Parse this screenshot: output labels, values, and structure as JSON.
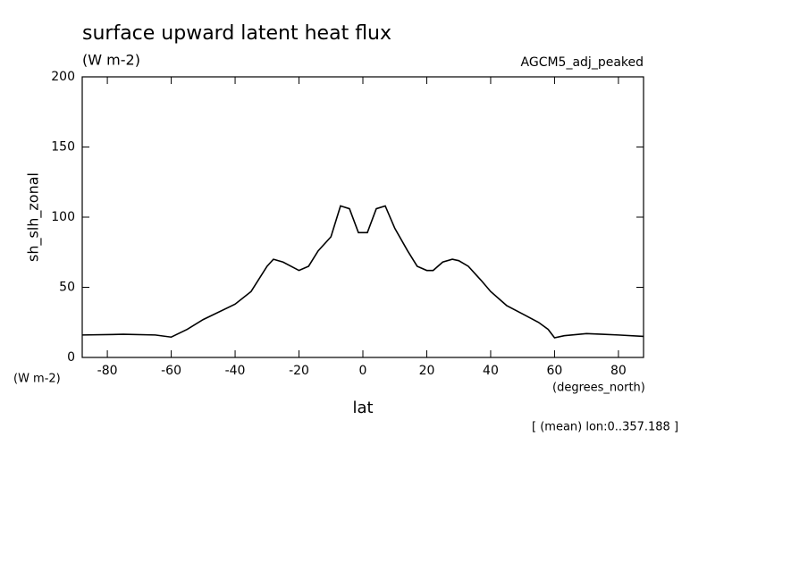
{
  "chart_data": {
    "type": "line",
    "title": "surface upward latent heat flux",
    "subtitle": "(W m-2)",
    "dataset_label": "AGCM5_adj_peaked",
    "y_label": "sh_slh_zonal",
    "y_units": "(W m-2)",
    "x_label": "lat",
    "x_units": "(degrees_north)",
    "note": "[ (mean) lon:0..357.188 ]",
    "x": [
      -87.86,
      -75,
      -65,
      -60,
      -55,
      -50,
      -40,
      -35,
      -30,
      -28,
      -25,
      -20,
      -17,
      -14,
      -10,
      -7,
      -4.2,
      -1.4,
      1.4,
      4.2,
      7,
      10,
      14,
      17,
      20,
      22,
      25,
      28,
      30,
      33,
      37,
      40,
      45,
      50,
      55,
      58,
      60,
      63,
      70,
      75,
      80,
      87.86
    ],
    "series": [
      {
        "name": "sh_slh_zonal",
        "color": "#000000",
        "values": [
          16,
          16.5,
          16,
          14.5,
          20,
          27,
          38,
          47,
          65,
          70,
          68,
          62,
          65,
          76,
          86,
          108,
          106,
          89,
          89,
          106,
          108,
          92,
          76,
          65,
          62,
          62,
          68,
          70,
          69,
          65,
          55,
          47,
          37,
          31,
          25,
          20,
          14,
          15.5,
          17,
          16.5,
          16,
          15
        ]
      }
    ],
    "xlim": [
      -87.86,
      87.86
    ],
    "ylim": [
      0,
      200
    ],
    "xticks": [
      -80,
      -60,
      -40,
      -20,
      0,
      20,
      40,
      60,
      80
    ],
    "yticks": [
      0,
      50,
      100,
      150,
      200
    ]
  }
}
